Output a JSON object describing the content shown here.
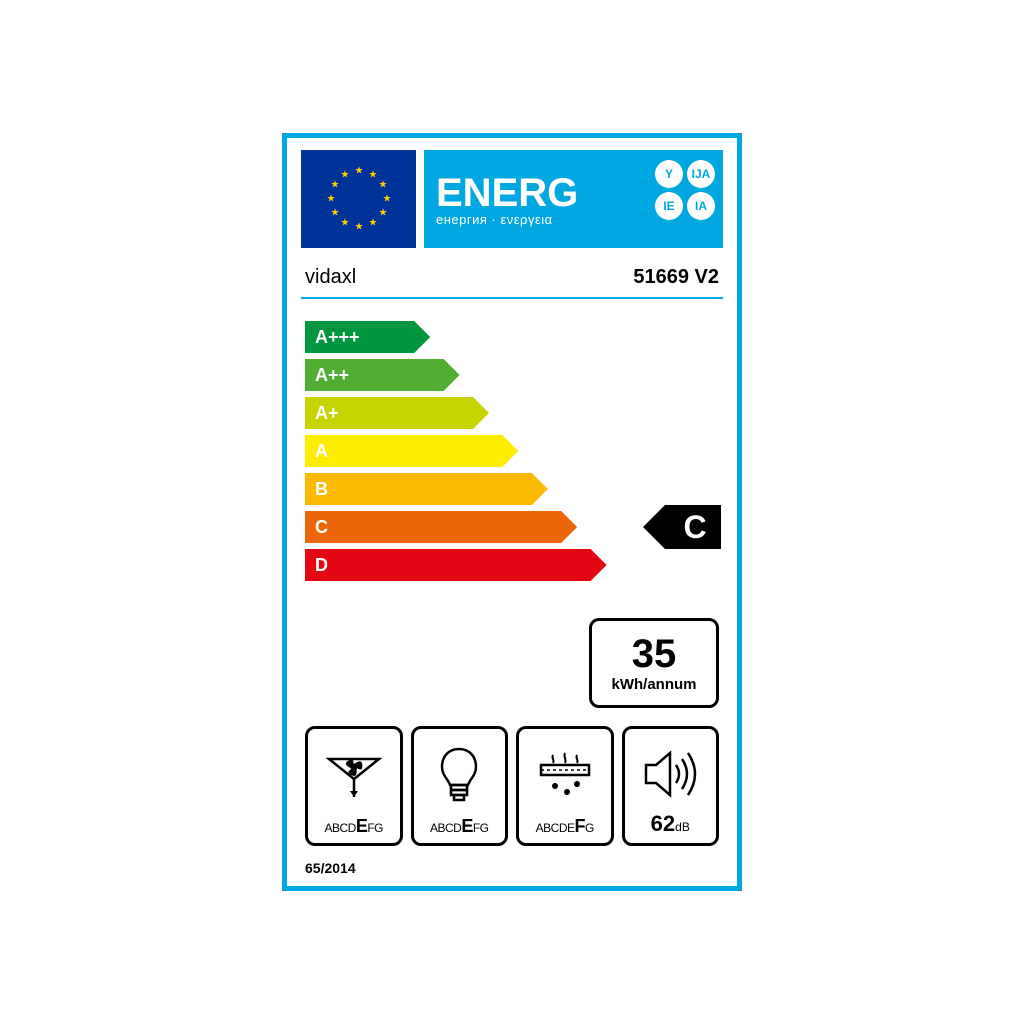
{
  "header": {
    "title": "ENERG",
    "subtitle": "енергия · ενεργεια",
    "lang_codes": [
      "Y",
      "IJA",
      "IE",
      "IA"
    ],
    "eu_flag_bg": "#003399",
    "eu_star_color": "#ffcc00",
    "block_bg": "#00a7e1"
  },
  "product": {
    "brand": "vidaxl",
    "model": "51669 V2"
  },
  "scale": {
    "ratings": [
      {
        "label": "A+++",
        "color": "#009640",
        "width_pct": 26
      },
      {
        "label": "A++",
        "color": "#52ae32",
        "width_pct": 33
      },
      {
        "label": "A+",
        "color": "#c8d400",
        "width_pct": 40
      },
      {
        "label": "A",
        "color": "#ffed00",
        "width_pct": 47
      },
      {
        "label": "B",
        "color": "#fbba00",
        "width_pct": 54
      },
      {
        "label": "C",
        "color": "#ec6608",
        "width_pct": 61
      },
      {
        "label": "D",
        "color": "#e30613",
        "width_pct": 68
      }
    ],
    "selected_index": 5,
    "selected_label": "C"
  },
  "consumption": {
    "value": "35",
    "unit": "kWh/annum"
  },
  "pictograms": [
    {
      "type": "fan",
      "scale_html": "ABCD<b>E</b>FG",
      "highlight": "E"
    },
    {
      "type": "bulb",
      "scale_html": "ABCD<b>E</b>FG",
      "highlight": "E"
    },
    {
      "type": "grease",
      "scale_html": "ABCDE<b>F</b>G",
      "highlight": "F"
    },
    {
      "type": "noise",
      "value": "62",
      "unit": "dB"
    }
  ],
  "regulation": "65/2014",
  "colors": {
    "border": "#00a7e1",
    "black": "#000000",
    "white": "#ffffff"
  }
}
